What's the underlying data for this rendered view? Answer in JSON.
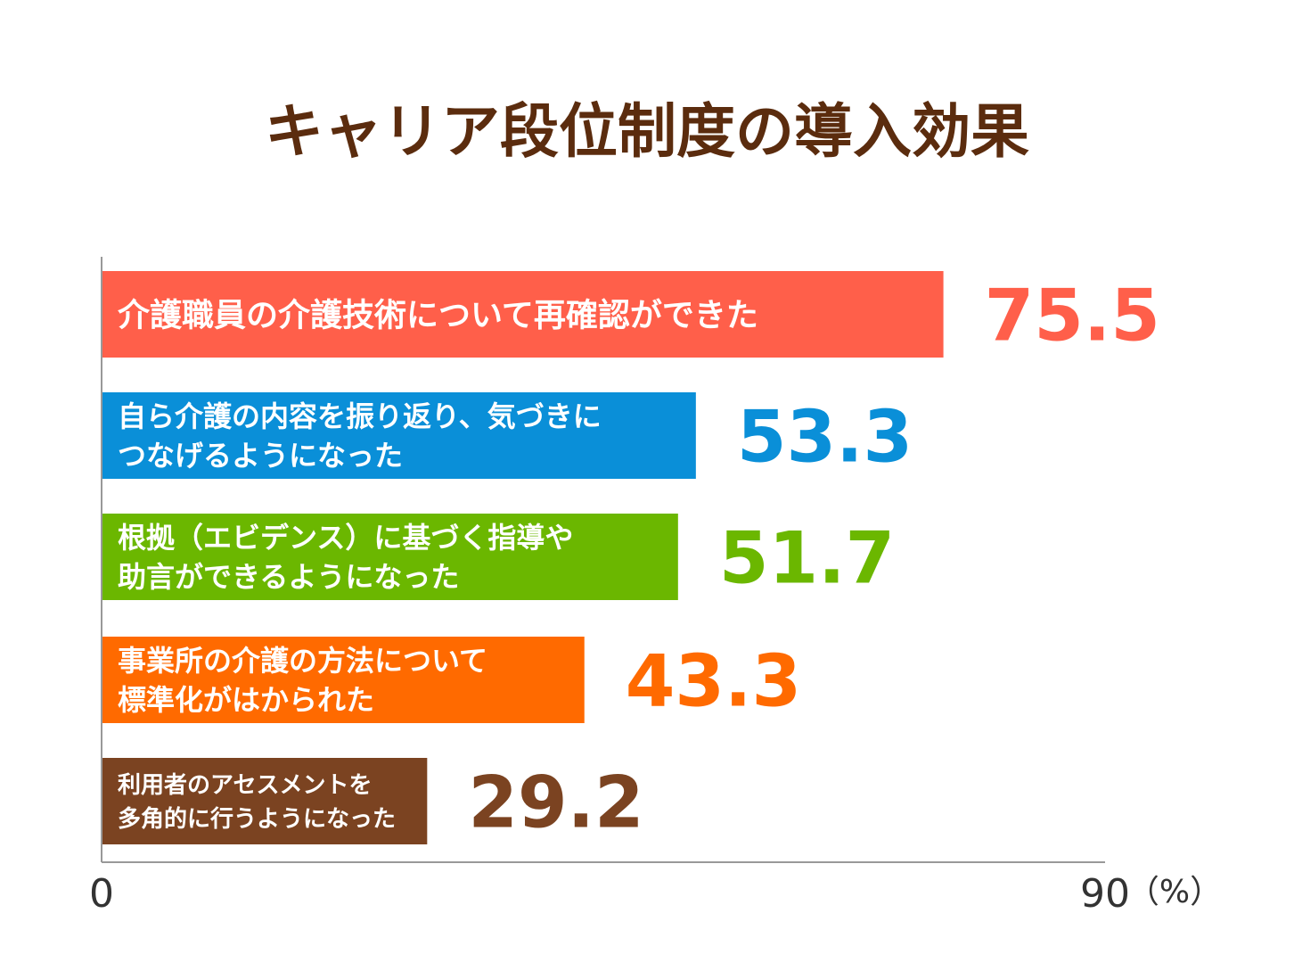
{
  "chart_data": {
    "type": "bar",
    "orientation": "horizontal",
    "title": "キャリア段位制度の導入効果",
    "categories": [
      [
        "介護職員の介護技術について再確認ができた"
      ],
      [
        "自ら介護の内容を振り返り、気づきに",
        "つなげるようになった"
      ],
      [
        "根拠（エビデンス）に基づく指導や",
        "助言ができるようになった"
      ],
      [
        "事業所の介護の方法について",
        "標準化がはかられた"
      ],
      [
        "利用者のアセスメントを",
        "多角的に行うようになった"
      ]
    ],
    "values": [
      75.5,
      53.3,
      51.7,
      43.3,
      29.2
    ],
    "value_labels": [
      "75.5",
      "53.3",
      "51.7",
      "43.3",
      "29.2"
    ],
    "colors": [
      "#ff5f4a",
      "#0a8fd8",
      "#6bb700",
      "#ff6a00",
      "#7b4321"
    ],
    "xlim": [
      0,
      90
    ],
    "x_tick_labels": [
      "0",
      "90"
    ],
    "unit_label": "（%）",
    "title_color": "#5b2c0e",
    "axis_color": "#999999",
    "grid": false,
    "legend": "none"
  }
}
